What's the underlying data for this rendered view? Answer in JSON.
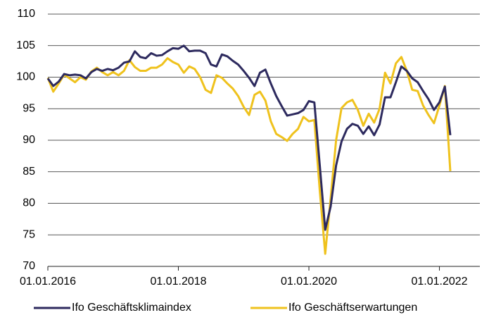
{
  "chart_data": {
    "type": "line",
    "x": [
      "01.01.2016",
      "01.02.2016",
      "01.03.2016",
      "01.04.2016",
      "01.05.2016",
      "01.06.2016",
      "01.07.2016",
      "01.08.2016",
      "01.09.2016",
      "01.10.2016",
      "01.11.2016",
      "01.12.2016",
      "01.01.2017",
      "01.02.2017",
      "01.03.2017",
      "01.04.2017",
      "01.05.2017",
      "01.06.2017",
      "01.07.2017",
      "01.08.2017",
      "01.09.2017",
      "01.10.2017",
      "01.11.2017",
      "01.12.2017",
      "01.01.2018",
      "01.02.2018",
      "01.03.2018",
      "01.04.2018",
      "01.05.2018",
      "01.06.2018",
      "01.07.2018",
      "01.08.2018",
      "01.09.2018",
      "01.10.2018",
      "01.11.2018",
      "01.12.2018",
      "01.01.2019",
      "01.02.2019",
      "01.03.2019",
      "01.04.2019",
      "01.05.2019",
      "01.06.2019",
      "01.07.2019",
      "01.08.2019",
      "01.09.2019",
      "01.10.2019",
      "01.11.2019",
      "01.12.2019",
      "01.01.2020",
      "01.02.2020",
      "01.03.2020",
      "01.04.2020",
      "01.05.2020",
      "01.06.2020",
      "01.07.2020",
      "01.08.2020",
      "01.09.2020",
      "01.10.2020",
      "01.11.2020",
      "01.12.2020",
      "01.01.2021",
      "01.02.2021",
      "01.03.2021",
      "01.04.2021",
      "01.05.2021",
      "01.06.2021",
      "01.07.2021",
      "01.08.2021",
      "01.09.2021",
      "01.10.2021",
      "01.11.2021",
      "01.12.2021",
      "01.01.2022",
      "01.02.2022",
      "01.03.2022"
    ],
    "series": [
      {
        "name": "Ifo Geschäftsklimaindex",
        "color": "#2d2a5e",
        "values": [
          99.8,
          98.6,
          99.3,
          100.5,
          100.3,
          100.4,
          100.3,
          99.8,
          100.8,
          101.3,
          101.0,
          101.3,
          101.1,
          101.5,
          102.3,
          102.5,
          104.1,
          103.2,
          103.0,
          103.8,
          103.4,
          103.5,
          104.1,
          104.6,
          104.5,
          105.0,
          104.1,
          104.2,
          104.2,
          103.8,
          102.0,
          101.7,
          103.6,
          103.3,
          102.6,
          102.0,
          101.0,
          99.9,
          98.6,
          100.7,
          101.2,
          99.0,
          97.0,
          95.4,
          93.9,
          94.1,
          94.3,
          94.8,
          96.2,
          96.0,
          86.0,
          75.8,
          79.5,
          86.0,
          89.8,
          91.8,
          92.6,
          92.3,
          91.0,
          92.2,
          90.8,
          92.5,
          96.8,
          96.8,
          99.2,
          101.7,
          101.0,
          99.8,
          99.2,
          97.8,
          96.5,
          94.8,
          96.0,
          98.5,
          90.8
        ]
      },
      {
        "name": "Ifo Geschäftserwartungen",
        "color": "#efc21d",
        "values": [
          99.9,
          97.7,
          99.0,
          100.4,
          99.8,
          99.2,
          100.0,
          99.6,
          100.9,
          101.5,
          100.8,
          100.3,
          100.8,
          100.3,
          101.0,
          102.7,
          101.6,
          101.0,
          101.0,
          101.5,
          101.5,
          102.0,
          103.0,
          102.4,
          102.0,
          100.7,
          101.7,
          101.3,
          100.0,
          98.0,
          97.5,
          100.3,
          99.9,
          99.0,
          98.2,
          97.0,
          95.3,
          94.0,
          97.2,
          97.7,
          96.3,
          93.0,
          91.0,
          90.5,
          89.9,
          91.0,
          91.8,
          93.7,
          93.0,
          93.2,
          82.0,
          72.0,
          80.8,
          90.0,
          95.1,
          96.0,
          96.4,
          94.8,
          92.3,
          94.2,
          92.8,
          95.0,
          100.7,
          99.0,
          102.2,
          103.2,
          101.0,
          98.0,
          97.8,
          95.5,
          94.0,
          92.7,
          95.5,
          98.6,
          85.1
        ]
      }
    ],
    "xlim": [
      "01.01.2016",
      "01.03.2022"
    ],
    "xticks": [
      "01.01.2016",
      "01.01.2018",
      "01.01.2020",
      "01.01.2022"
    ],
    "ylim": [
      70,
      110
    ],
    "yticks": [
      70,
      75,
      80,
      85,
      90,
      95,
      100,
      105,
      110
    ],
    "grid": true,
    "legend": "bottom"
  }
}
